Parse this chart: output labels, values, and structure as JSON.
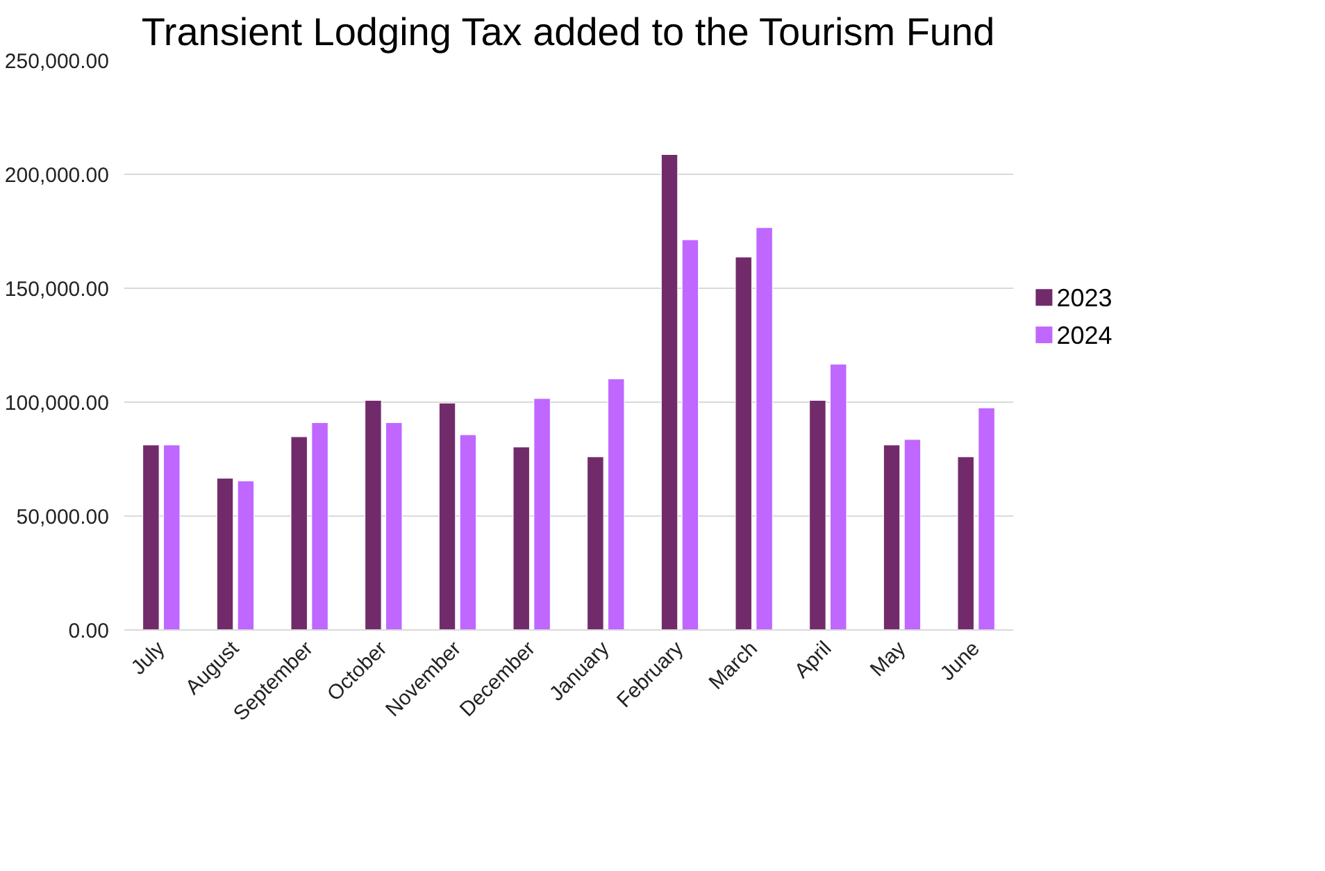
{
  "chart_data": {
    "type": "bar",
    "title": "Transient Lodging Tax added to the Tourism Fund",
    "categories": [
      "July",
      "August",
      "September",
      "October",
      "November",
      "December",
      "January",
      "February",
      "March",
      "April",
      "May",
      "June"
    ],
    "series": [
      {
        "name": "2023",
        "color": "#722b6a",
        "values": [
          81200,
          66600,
          84800,
          100800,
          99600,
          80300,
          76000,
          208700,
          163700,
          100800,
          81200,
          76000
        ]
      },
      {
        "name": "2024",
        "color": "#bf67ff",
        "values": [
          81200,
          65400,
          91000,
          91000,
          85700,
          101600,
          110200,
          171300,
          176600,
          116700,
          83600,
          97500
        ]
      }
    ],
    "ylim": [
      0,
      250000
    ],
    "yticks": [
      {
        "value": 0,
        "label": "0.00"
      },
      {
        "value": 50000,
        "label": "50,000.00"
      },
      {
        "value": 100000,
        "label": "100,000.00"
      },
      {
        "value": 150000,
        "label": "150,000.00"
      },
      {
        "value": 200000,
        "label": "200,000.00"
      },
      {
        "value": 250000,
        "label": "250,000.00"
      }
    ],
    "grid": "y",
    "legend": "right"
  }
}
